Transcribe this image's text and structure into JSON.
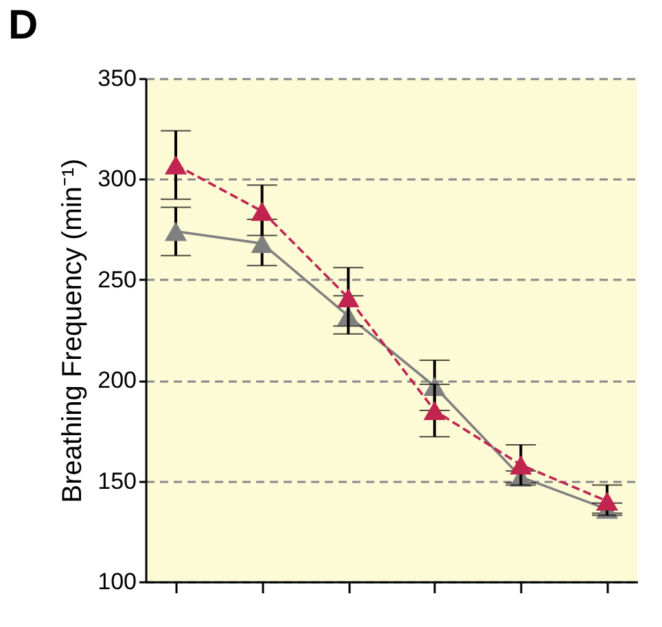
{
  "chart_data": {
    "type": "line",
    "title": "D",
    "ylabel": "Breathing Frequency (min⁻¹)",
    "categories": [
      null,
      null,
      null,
      null,
      null,
      null
    ],
    "ylim": [
      100,
      350
    ],
    "yticks": [
      100,
      150,
      200,
      250,
      300,
      350
    ],
    "grid": "y",
    "marker": "triangle",
    "series": [
      {
        "color": "#808080",
        "line_style": "solid",
        "values": [
          274,
          268,
          232,
          197,
          152,
          136
        ],
        "errors": [
          [
            262,
            286
          ],
          [
            257,
            280
          ],
          [
            223,
            242
          ],
          [
            185,
            210
          ],
          [
            149,
            155
          ],
          [
            134,
            139
          ]
        ]
      },
      {
        "color": "#c0244f",
        "line_style": "dashed",
        "values": [
          307,
          284,
          241,
          185,
          158,
          140
        ],
        "errors": [
          [
            290,
            324
          ],
          [
            272,
            297
          ],
          [
            227,
            256
          ],
          [
            172,
            198
          ],
          [
            148,
            168
          ],
          [
            133,
            148
          ]
        ]
      }
    ]
  }
}
